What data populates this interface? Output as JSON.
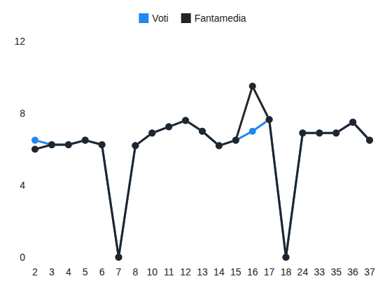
{
  "chart_data": {
    "type": "line",
    "categories": [
      "2",
      "3",
      "4",
      "5",
      "6",
      "7",
      "8",
      "10",
      "11",
      "12",
      "13",
      "14",
      "15",
      "16",
      "17",
      "18",
      "24",
      "33",
      "35",
      "36",
      "37"
    ],
    "series": [
      {
        "name": "Voti",
        "color": "#1e88f0",
        "marker": "circle",
        "values": [
          6.5,
          6.25,
          6.25,
          6.5,
          6.25,
          0,
          6.2,
          6.9,
          7.25,
          7.6,
          7,
          6.2,
          6.5,
          7,
          7.65,
          0,
          6.9,
          6.9,
          6.9,
          7.5,
          6.5
        ]
      },
      {
        "name": "Fantamedia",
        "color": "#222529",
        "marker": "circle",
        "values": [
          6,
          6.25,
          6.25,
          6.5,
          6.25,
          0,
          6.2,
          6.9,
          7.25,
          7.6,
          7,
          6.2,
          6.5,
          9.5,
          7.65,
          0,
          6.9,
          6.9,
          6.9,
          7.5,
          6.5
        ]
      }
    ],
    "ylim": [
      0,
      12
    ],
    "yticks": [
      0,
      4,
      8,
      12
    ],
    "grid": false,
    "legend": "top"
  }
}
